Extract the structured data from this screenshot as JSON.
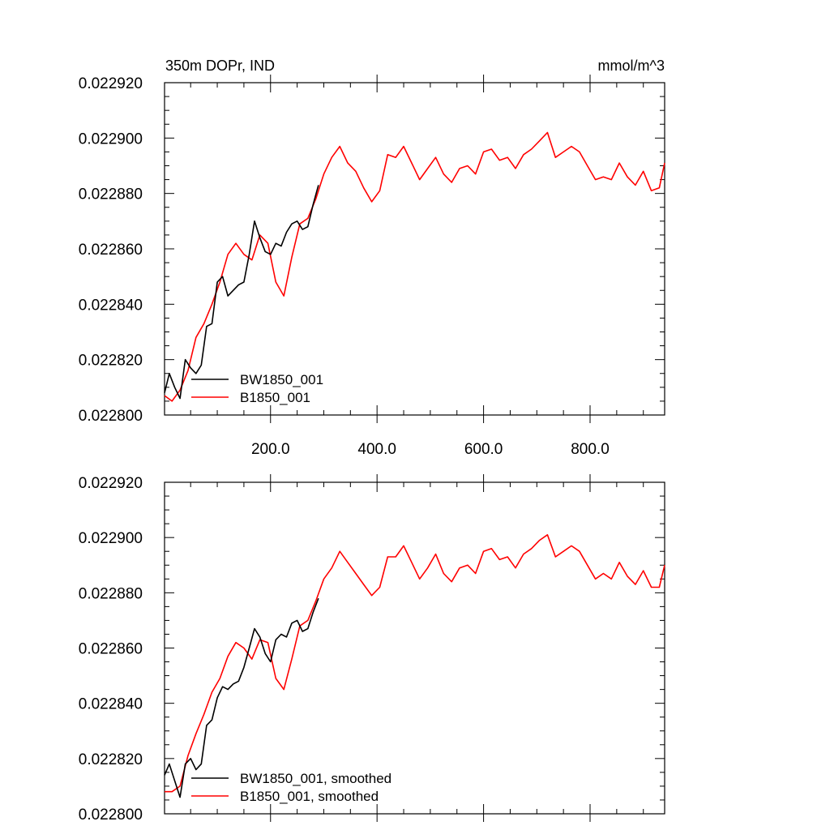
{
  "figure": {
    "title_left": "350m DOPr, IND",
    "title_right": "mmol/m^3"
  },
  "colors": {
    "BW1850_001": "#000000",
    "B1850_001": "#ff0000"
  },
  "chart_data": [
    {
      "type": "line",
      "title": "350m DOPr, IND",
      "units": "mmol/m^3",
      "xlim": [
        1,
        940
      ],
      "ylim": [
        0.0228,
        0.02292
      ],
      "x_ticks": [
        200,
        400,
        600,
        800
      ],
      "x_tick_labels": [
        "200.0",
        "400.0",
        "600.0",
        "800.0"
      ],
      "y_ticks": [
        0.0228,
        0.02282,
        0.02284,
        0.02286,
        0.02288,
        0.0229,
        0.02292
      ],
      "y_tick_labels": [
        "0.022800",
        "0.022820",
        "0.022840",
        "0.022860",
        "0.022880",
        "0.022900",
        "0.022920"
      ],
      "legend_position": "bottom-left",
      "series": [
        {
          "name": "BW1850_001",
          "color": "#000000",
          "x": [
            1,
            10,
            20,
            30,
            40,
            50,
            60,
            70,
            80,
            90,
            100,
            110,
            120,
            130,
            140,
            150,
            160,
            170,
            180,
            190,
            200,
            210,
            220,
            230,
            240,
            250,
            260,
            270,
            280,
            290
          ],
          "y": [
            0.022808,
            0.022815,
            0.02281,
            0.022806,
            0.02282,
            0.022817,
            0.022815,
            0.022818,
            0.022832,
            0.022833,
            0.022848,
            0.02285,
            0.022843,
            0.022845,
            0.022847,
            0.022848,
            0.022858,
            0.02287,
            0.022864,
            0.022859,
            0.022858,
            0.022862,
            0.022861,
            0.022866,
            0.022869,
            0.02287,
            0.022867,
            0.022868,
            0.022876,
            0.022883
          ]
        },
        {
          "name": "B1850_001",
          "color": "#ff0000",
          "x": [
            1,
            15,
            30,
            45,
            60,
            75,
            90,
            105,
            120,
            135,
            150,
            165,
            180,
            195,
            210,
            225,
            240,
            255,
            270,
            285,
            300,
            315,
            330,
            345,
            360,
            375,
            390,
            405,
            420,
            435,
            450,
            465,
            480,
            495,
            510,
            525,
            540,
            555,
            570,
            585,
            600,
            615,
            630,
            645,
            660,
            675,
            690,
            705,
            720,
            735,
            750,
            765,
            780,
            795,
            810,
            825,
            840,
            855,
            870,
            885,
            900,
            915,
            930,
            940
          ],
          "y": [
            0.022807,
            0.022805,
            0.022809,
            0.022816,
            0.022828,
            0.022833,
            0.02284,
            0.022848,
            0.022858,
            0.022862,
            0.022858,
            0.022856,
            0.022865,
            0.022862,
            0.022848,
            0.022843,
            0.022857,
            0.022869,
            0.022871,
            0.022878,
            0.022887,
            0.022893,
            0.022897,
            0.022891,
            0.022888,
            0.022882,
            0.022877,
            0.022881,
            0.022894,
            0.022893,
            0.022897,
            0.022891,
            0.022885,
            0.022889,
            0.022893,
            0.022887,
            0.022884,
            0.022889,
            0.02289,
            0.022887,
            0.022895,
            0.022896,
            0.022892,
            0.022893,
            0.022889,
            0.022894,
            0.022896,
            0.022899,
            0.022902,
            0.022893,
            0.022895,
            0.022897,
            0.022895,
            0.02289,
            0.022885,
            0.022886,
            0.022885,
            0.022891,
            0.022886,
            0.022883,
            0.022888,
            0.022881,
            0.022882,
            0.022891
          ]
        }
      ]
    },
    {
      "type": "line",
      "xlim": [
        1,
        940
      ],
      "ylim": [
        0.0228,
        0.02292
      ],
      "y_ticks": [
        0.0228,
        0.02282,
        0.02284,
        0.02286,
        0.02288,
        0.0229,
        0.02292
      ],
      "y_tick_labels": [
        "0.022800",
        "0.022820",
        "0.022840",
        "0.022860",
        "0.022880",
        "0.022900",
        "0.022920"
      ],
      "legend_position": "bottom-left",
      "series": [
        {
          "name": "BW1850_001, smoothed",
          "color": "#000000",
          "x": [
            1,
            10,
            20,
            30,
            40,
            50,
            60,
            70,
            80,
            90,
            100,
            110,
            120,
            130,
            140,
            150,
            160,
            170,
            180,
            190,
            200,
            210,
            220,
            230,
            240,
            250,
            260,
            270,
            280,
            290
          ],
          "y": [
            0.022814,
            0.022818,
            0.022812,
            0.022806,
            0.022818,
            0.02282,
            0.022816,
            0.022818,
            0.022832,
            0.022834,
            0.022842,
            0.022846,
            0.022845,
            0.022847,
            0.022848,
            0.022853,
            0.02286,
            0.022867,
            0.022864,
            0.022858,
            0.022855,
            0.022863,
            0.022865,
            0.022864,
            0.022869,
            0.02287,
            0.022866,
            0.022867,
            0.022873,
            0.022878
          ]
        },
        {
          "name": "B1850_001, smoothed",
          "color": "#ff0000",
          "x": [
            1,
            15,
            30,
            45,
            60,
            75,
            90,
            105,
            120,
            135,
            150,
            165,
            180,
            195,
            210,
            225,
            240,
            255,
            270,
            285,
            300,
            315,
            330,
            345,
            360,
            375,
            390,
            405,
            420,
            435,
            450,
            465,
            480,
            495,
            510,
            525,
            540,
            555,
            570,
            585,
            600,
            615,
            630,
            645,
            660,
            675,
            690,
            705,
            720,
            735,
            750,
            765,
            780,
            795,
            810,
            825,
            840,
            855,
            870,
            885,
            900,
            915,
            930,
            940
          ],
          "y": [
            0.022808,
            0.022808,
            0.02281,
            0.022821,
            0.022829,
            0.022836,
            0.022844,
            0.022849,
            0.022857,
            0.022862,
            0.02286,
            0.022856,
            0.022863,
            0.022862,
            0.022849,
            0.022845,
            0.022856,
            0.022868,
            0.02287,
            0.022877,
            0.022885,
            0.022889,
            0.022895,
            0.022891,
            0.022887,
            0.022883,
            0.022879,
            0.022882,
            0.022893,
            0.022893,
            0.022897,
            0.022891,
            0.022885,
            0.022889,
            0.022894,
            0.022887,
            0.022884,
            0.022889,
            0.02289,
            0.022887,
            0.022895,
            0.022896,
            0.022892,
            0.022893,
            0.022889,
            0.022894,
            0.022896,
            0.022899,
            0.022901,
            0.022893,
            0.022895,
            0.022897,
            0.022895,
            0.02289,
            0.022885,
            0.022887,
            0.022885,
            0.022891,
            0.022886,
            0.022883,
            0.022888,
            0.022882,
            0.022882,
            0.02289
          ]
        }
      ]
    }
  ]
}
